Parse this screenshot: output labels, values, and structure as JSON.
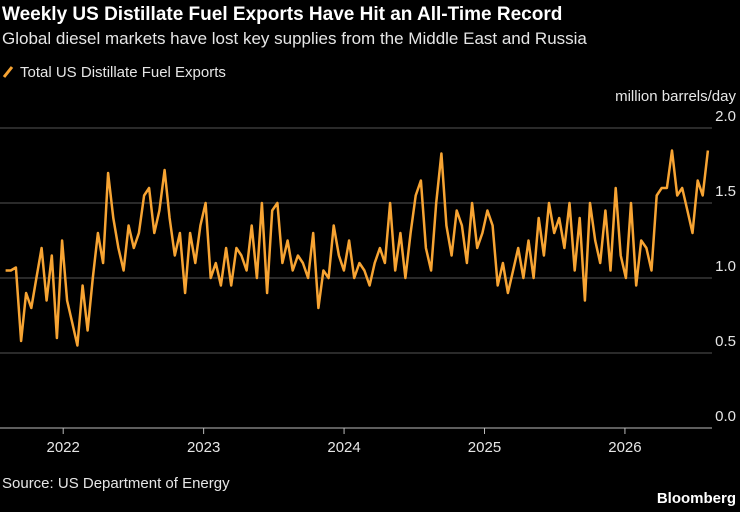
{
  "chart_data": {
    "type": "line",
    "title": "Weekly US Distillate Fuel Exports Have Hit an All-Time Record",
    "subtitle": "Global diesel markets have lost key supplies from the Middle East and Russia",
    "y_label": "million barrels/day",
    "source": "Source: US Department of Energy",
    "brand": "Bloomberg",
    "xlim": [
      2021.55,
      2026.62
    ],
    "xticks": [
      2022,
      2023,
      2024,
      2025,
      2026
    ],
    "ylim": [
      0,
      2
    ],
    "yticks": [
      {
        "value": 0,
        "label": "0.0"
      },
      {
        "value": 0.5,
        "label": "0.5"
      },
      {
        "value": 1,
        "label": "1.0"
      },
      {
        "value": 1.5,
        "label": "1.5"
      },
      {
        "value": 2,
        "label": "2.0"
      }
    ],
    "grid": true,
    "x": [
      2021.59,
      2021.627,
      2021.663,
      2021.7,
      2021.736,
      2021.773,
      2021.809,
      2021.846,
      2021.882,
      2021.919,
      2021.955,
      2021.992,
      2022.028,
      2022.065,
      2022.101,
      2022.138,
      2022.174,
      2022.211,
      2022.247,
      2022.284,
      2022.32,
      2022.357,
      2022.393,
      2022.43,
      2022.466,
      2022.503,
      2022.539,
      2022.576,
      2022.612,
      2022.649,
      2022.685,
      2022.722,
      2022.758,
      2022.795,
      2022.831,
      2022.868,
      2022.904,
      2022.941,
      2022.977,
      2023.014,
      2023.05,
      2023.087,
      2023.123,
      2023.16,
      2023.196,
      2023.233,
      2023.269,
      2023.306,
      2023.342,
      2023.379,
      2023.415,
      2023.452,
      2023.488,
      2023.525,
      2023.561,
      2023.598,
      2023.634,
      2023.671,
      2023.707,
      2023.744,
      2023.78,
      2023.817,
      2023.853,
      2023.89,
      2023.926,
      2023.963,
      2023.999,
      2024.036,
      2024.072,
      2024.109,
      2024.145,
      2024.182,
      2024.218,
      2024.255,
      2024.291,
      2024.328,
      2024.364,
      2024.401,
      2024.437,
      2024.474,
      2024.51,
      2024.547,
      2024.583,
      2024.62,
      2024.656,
      2024.693,
      2024.729,
      2024.766,
      2024.802,
      2024.839,
      2024.875,
      2024.912,
      2024.948,
      2024.985,
      2025.021,
      2025.058,
      2025.094,
      2025.131,
      2025.167,
      2025.204,
      2025.24,
      2025.277,
      2025.313,
      2025.35,
      2025.386,
      2025.423,
      2025.459,
      2025.496,
      2025.532,
      2025.569,
      2025.605,
      2025.642,
      2025.678,
      2025.715,
      2025.751,
      2025.788,
      2025.824,
      2025.861,
      2025.897,
      2025.934,
      2025.97,
      2026.007,
      2026.043,
      2026.08,
      2026.116,
      2026.153,
      2026.189,
      2026.226,
      2026.262,
      2026.299,
      2026.335,
      2026.372,
      2026.408,
      2026.445,
      2026.481,
      2026.518,
      2026.554,
      2026.591
    ],
    "series": [
      {
        "name": "Total US Distillate Fuel Exports",
        "color": "#f7a433",
        "values": [
          1.05,
          1.05,
          1.07,
          0.58,
          0.9,
          0.8,
          1.0,
          1.2,
          0.85,
          1.15,
          0.6,
          1.25,
          0.85,
          0.7,
          0.55,
          0.95,
          0.65,
          1.0,
          1.3,
          1.1,
          1.7,
          1.4,
          1.2,
          1.05,
          1.35,
          1.2,
          1.3,
          1.55,
          1.6,
          1.3,
          1.45,
          1.72,
          1.4,
          1.15,
          1.3,
          0.9,
          1.3,
          1.1,
          1.35,
          1.5,
          1.0,
          1.1,
          0.95,
          1.2,
          0.95,
          1.2,
          1.15,
          1.05,
          1.35,
          1.0,
          1.5,
          0.9,
          1.45,
          1.5,
          1.1,
          1.25,
          1.05,
          1.15,
          1.1,
          1.0,
          1.3,
          0.8,
          1.05,
          1.0,
          1.35,
          1.15,
          1.05,
          1.25,
          1.0,
          1.1,
          1.05,
          0.95,
          1.1,
          1.2,
          1.1,
          1.5,
          1.05,
          1.3,
          1.0,
          1.3,
          1.55,
          1.65,
          1.2,
          1.05,
          1.5,
          1.83,
          1.35,
          1.15,
          1.45,
          1.35,
          1.1,
          1.5,
          1.2,
          1.3,
          1.45,
          1.35,
          0.95,
          1.1,
          0.9,
          1.05,
          1.2,
          1.0,
          1.25,
          1.0,
          1.4,
          1.15,
          1.5,
          1.3,
          1.4,
          1.2,
          1.5,
          1.05,
          1.4,
          0.85,
          1.5,
          1.25,
          1.1,
          1.45,
          1.05,
          1.6,
          1.15,
          1.0,
          1.5,
          0.95,
          1.25,
          1.2,
          1.05,
          1.55,
          1.6,
          1.6,
          1.85,
          1.55,
          1.6,
          1.45,
          1.3,
          1.65,
          1.55,
          1.85
        ]
      }
    ]
  }
}
